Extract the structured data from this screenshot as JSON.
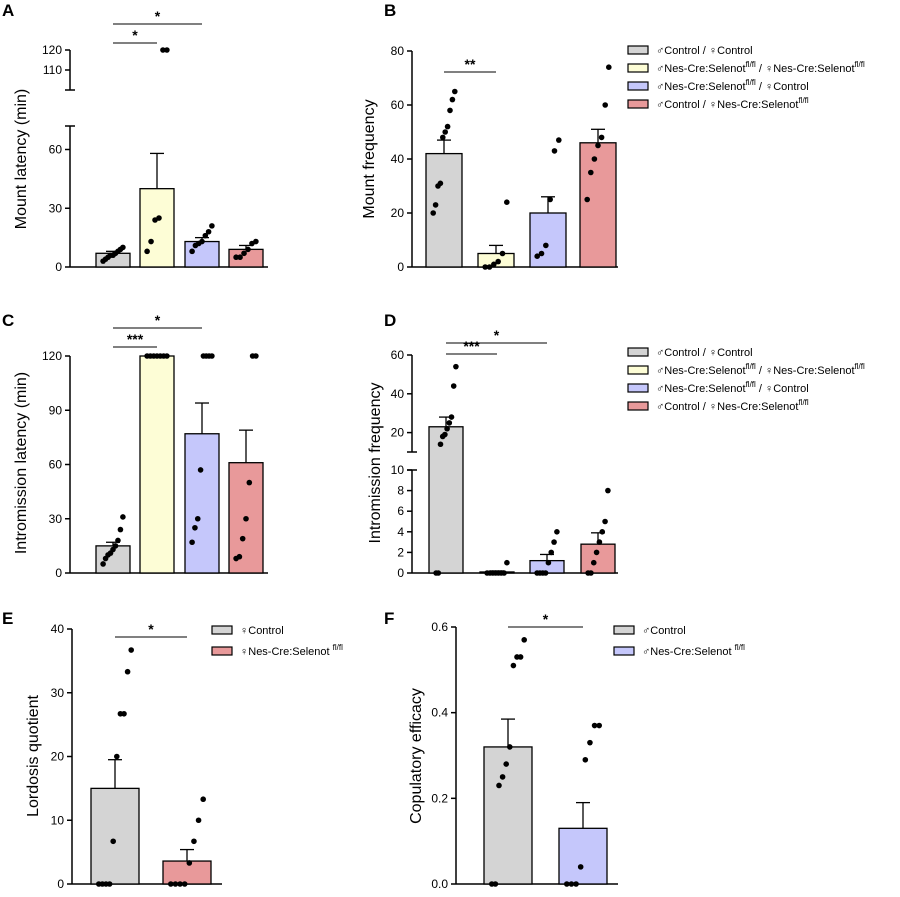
{
  "legend_text": {
    "male_control_female_control": "♂Control / ♀Control",
    "both_nes_prefix": "♂Nes-Cre:Selenot",
    "both_nes_middle": " / ♀Nes-Cre:Selenot",
    "male_nes_prefix": "♂Nes-Cre:Selenot",
    "male_nes_suffix": " / ♀Control",
    "female_nes_prefix": "♂Control / ♀Nes-Cre:Selenot",
    "superscript": "fl/fl",
    "female_control": "♀Control",
    "female_nes": "♀Nes-Cre:Selenot ",
    "male_control": "♂Control",
    "male_nes": "♂Nes-Cre:Selenot "
  },
  "colors": {
    "gray": "#d4d4d4",
    "yellow": "#fdfdd6",
    "purple": "#c5c7fb",
    "red": "#e8999a"
  },
  "chart_data": [
    {
      "panel": "A",
      "type": "bar",
      "ylabel": "Mount latency (min)",
      "y_axis_break": "broken between 72 and 100",
      "y_ticks": [
        "0",
        "30",
        "60",
        "110",
        "120"
      ],
      "groups": [
        {
          "color_key": "gray",
          "mean": 7,
          "sem": 1,
          "points": [
            3,
            4,
            5,
            6,
            6,
            7,
            8,
            9,
            10
          ]
        },
        {
          "color_key": "yellow",
          "mean": 40,
          "sem": 18,
          "points": [
            8,
            13,
            24,
            25,
            120,
            120
          ]
        },
        {
          "color_key": "purple",
          "mean": 13,
          "sem": 2,
          "points": [
            8,
            11,
            12,
            13,
            16,
            18,
            21
          ]
        },
        {
          "color_key": "red",
          "mean": 9,
          "sem": 2,
          "points": [
            5,
            5,
            7,
            9,
            12,
            13
          ]
        }
      ],
      "significance": [
        {
          "from": 0,
          "to": 1,
          "label": "*"
        },
        {
          "from": 0,
          "to": 2,
          "label": "*"
        }
      ]
    },
    {
      "panel": "B",
      "type": "bar",
      "ylabel": "Mount frequency",
      "ylim": [
        0,
        80
      ],
      "y_ticks": [
        "0",
        "20",
        "40",
        "60",
        "80"
      ],
      "groups": [
        {
          "color_key": "gray",
          "mean": 42,
          "sem": 5,
          "points": [
            20,
            23,
            30,
            31,
            48,
            50,
            52,
            58,
            62,
            65
          ]
        },
        {
          "color_key": "yellow",
          "mean": 5,
          "sem": 3,
          "points": [
            0,
            0,
            1,
            2,
            5,
            24
          ]
        },
        {
          "color_key": "purple",
          "mean": 20,
          "sem": 6,
          "points": [
            4,
            5,
            8,
            25,
            43,
            47
          ]
        },
        {
          "color_key": "red",
          "mean": 46,
          "sem": 5,
          "points": [
            25,
            35,
            40,
            45,
            48,
            60,
            74
          ]
        }
      ],
      "significance": [
        {
          "from": 0,
          "to": 1,
          "label": "**"
        }
      ],
      "legend": [
        "♂Control / ♀Control",
        "♂Nes-Cre:Selenotfl/fl / ♀Nes-Cre:Selenotfl/fl",
        "♂Nes-Cre:Selenotfl/fl / ♀Control",
        "♂Control / ♀Nes-Cre:Selenotfl/fl"
      ]
    },
    {
      "panel": "C",
      "type": "bar",
      "ylabel": "Intromission latency (min)",
      "ylim": [
        0,
        120
      ],
      "y_ticks": [
        "0",
        "30",
        "60",
        "90",
        "120"
      ],
      "groups": [
        {
          "color_key": "gray",
          "mean": 15,
          "sem": 2,
          "points": [
            5,
            8,
            10,
            11,
            13,
            15,
            18,
            24,
            31
          ]
        },
        {
          "color_key": "yellow",
          "mean": 120,
          "sem": 0,
          "points": [
            120,
            120,
            120,
            120,
            120,
            120,
            120
          ]
        },
        {
          "color_key": "purple",
          "mean": 77,
          "sem": 17,
          "points": [
            17,
            25,
            30,
            57,
            120,
            120,
            120,
            120
          ]
        },
        {
          "color_key": "red",
          "mean": 61,
          "sem": 18,
          "points": [
            8,
            9,
            19,
            30,
            50,
            120,
            120
          ]
        }
      ],
      "significance": [
        {
          "from": 0,
          "to": 1,
          "label": "***"
        },
        {
          "from": 0,
          "to": 2,
          "label": "*"
        }
      ]
    },
    {
      "panel": "D",
      "type": "bar",
      "ylabel": "Intromission frequency",
      "y_axis_break": "lower segment 0-10, upper segment 10-60",
      "y_ticks": [
        "0",
        "2",
        "4",
        "6",
        "8",
        "10",
        "20",
        "40",
        "60"
      ],
      "groups": [
        {
          "color_key": "gray",
          "mean": 23,
          "sem": 5,
          "points": [
            0,
            0,
            14,
            18,
            19,
            22,
            25,
            28,
            44,
            54
          ]
        },
        {
          "color_key": "yellow",
          "mean": 0.1,
          "sem": 0.1,
          "points": [
            0,
            0,
            0,
            0,
            0,
            0,
            0,
            1
          ]
        },
        {
          "color_key": "purple",
          "mean": 1.2,
          "sem": 0.6,
          "points": [
            0,
            0,
            0,
            0,
            1,
            2,
            3,
            4
          ]
        },
        {
          "color_key": "red",
          "mean": 2.8,
          "sem": 1.1,
          "points": [
            0,
            0,
            1,
            2,
            3,
            4,
            5,
            8
          ]
        }
      ],
      "significance": [
        {
          "from": 0,
          "to": 1,
          "label": "***"
        },
        {
          "from": 0,
          "to": 2,
          "label": "*"
        }
      ],
      "legend": [
        "♂Control / ♀Control",
        "♂Nes-Cre:Selenotfl/fl / ♀Nes-Cre:Selenotfl/fl",
        "♂Nes-Cre:Selenotfl/fl / ♀Control",
        "♂Control / ♀Nes-Cre:Selenotfl/fl"
      ]
    },
    {
      "panel": "E",
      "type": "bar",
      "ylabel": "Lordosis quotient",
      "ylim": [
        0,
        40
      ],
      "y_ticks": [
        "0",
        "10",
        "20",
        "30",
        "40"
      ],
      "groups": [
        {
          "color_key": "gray",
          "mean": 15,
          "sem": 4.5,
          "points": [
            0,
            0,
            0,
            0,
            6.7,
            20,
            26.7,
            26.7,
            33.3,
            36.7
          ]
        },
        {
          "color_key": "red",
          "mean": 3.6,
          "sem": 1.8,
          "points": [
            0,
            0,
            0,
            0,
            3.3,
            6.7,
            10,
            13.3
          ]
        }
      ],
      "significance": [
        {
          "from": 0,
          "to": 1,
          "label": "*"
        }
      ],
      "legend": [
        "♀Control",
        "♀Nes-Cre:Selenot fl/fl"
      ]
    },
    {
      "panel": "F",
      "type": "bar",
      "ylabel": "Copulatory efficacy",
      "ylim": [
        0,
        0.6
      ],
      "y_ticks": [
        "0.0",
        "0.2",
        "0.4",
        "0.6"
      ],
      "groups": [
        {
          "color_key": "gray",
          "mean": 0.32,
          "sem": 0.065,
          "points": [
            0,
            0,
            0.23,
            0.25,
            0.28,
            0.32,
            0.51,
            0.53,
            0.53,
            0.57
          ]
        },
        {
          "color_key": "purple",
          "mean": 0.13,
          "sem": 0.06,
          "points": [
            0,
            0,
            0,
            0.04,
            0.29,
            0.33,
            0.37,
            0.37
          ]
        }
      ],
      "significance": [
        {
          "from": 0,
          "to": 1,
          "label": "*"
        }
      ],
      "legend": [
        "♂Control",
        "♂Nes-Cre:Selenot fl/fl"
      ]
    }
  ],
  "panels": {
    "a": {
      "letter": "A",
      "ylabel": "Mount latency (min)"
    },
    "b": {
      "letter": "B",
      "ylabel": "Mount frequency"
    },
    "c": {
      "letter": "C",
      "ylabel": "Intromission latency (min)"
    },
    "d": {
      "letter": "D",
      "ylabel": "Intromission frequency"
    },
    "e": {
      "letter": "E",
      "ylabel": "Lordosis quotient"
    },
    "f": {
      "letter": "F",
      "ylabel": "Copulatory efficacy"
    }
  }
}
